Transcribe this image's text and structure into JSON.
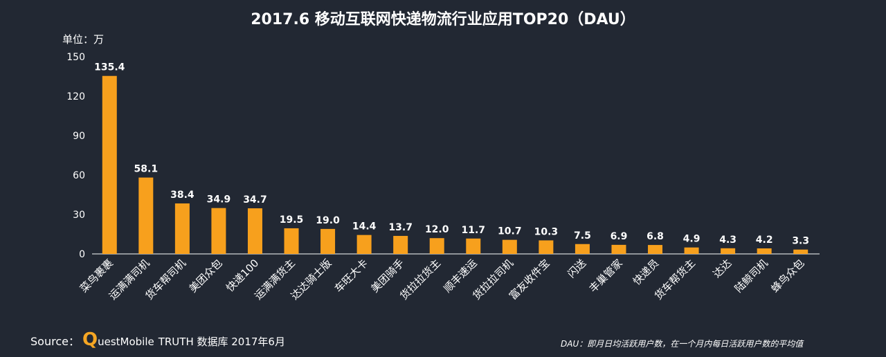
{
  "chart_data": {
    "type": "bar",
    "title": "2017.6 移动互联网快递物流行业应用TOP20（DAU）",
    "unit_label": "单位：万",
    "categories": [
      "菜鸟裹裹",
      "运满满司机",
      "货车帮司机",
      "美团众包",
      "快递100",
      "运满满货主",
      "达达骑士版",
      "车旺大卡",
      "美团骑手",
      "货拉拉货主",
      "顺丰速运",
      "货拉拉司机",
      "富友收件宝",
      "闪送",
      "丰巢管家",
      "快递员",
      "货车帮货主",
      "达达",
      "陆鲸司机",
      "蜂鸟众包"
    ],
    "values": [
      135.4,
      58.1,
      38.4,
      34.9,
      34.7,
      19.5,
      19.0,
      14.4,
      13.7,
      12.0,
      11.7,
      10.7,
      10.3,
      7.5,
      6.9,
      6.8,
      4.9,
      4.3,
      4.2,
      3.3
    ],
    "value_labels": [
      "135.4",
      "58.1",
      "38.4",
      "34.9",
      "34.7",
      "19.5",
      "19.0",
      "14.4",
      "13.7",
      "12.0",
      "11.7",
      "10.7",
      "10.3",
      "7.5",
      "6.9",
      "6.8",
      "4.9",
      "4.3",
      "4.2",
      "3.3"
    ],
    "yticks": [
      "0",
      "30",
      "60",
      "90",
      "120",
      "150"
    ],
    "ylim": [
      0,
      150
    ],
    "xlabel": "",
    "ylabel": "",
    "grid": false,
    "legend": "none",
    "colors": {
      "bar": "#f7a01d",
      "text": "#ffffff",
      "axis": "#ffffff",
      "background": "#222833"
    }
  },
  "footer": {
    "source_prefix": "Source：",
    "logo_q": "Q",
    "logo_rest": "uestMobile",
    "source_suffix": "TRUTH 数据库 2017年6月",
    "note": "DAU：即月日均活跃用户数，在一个月内每日活跃用户数的平均值"
  }
}
